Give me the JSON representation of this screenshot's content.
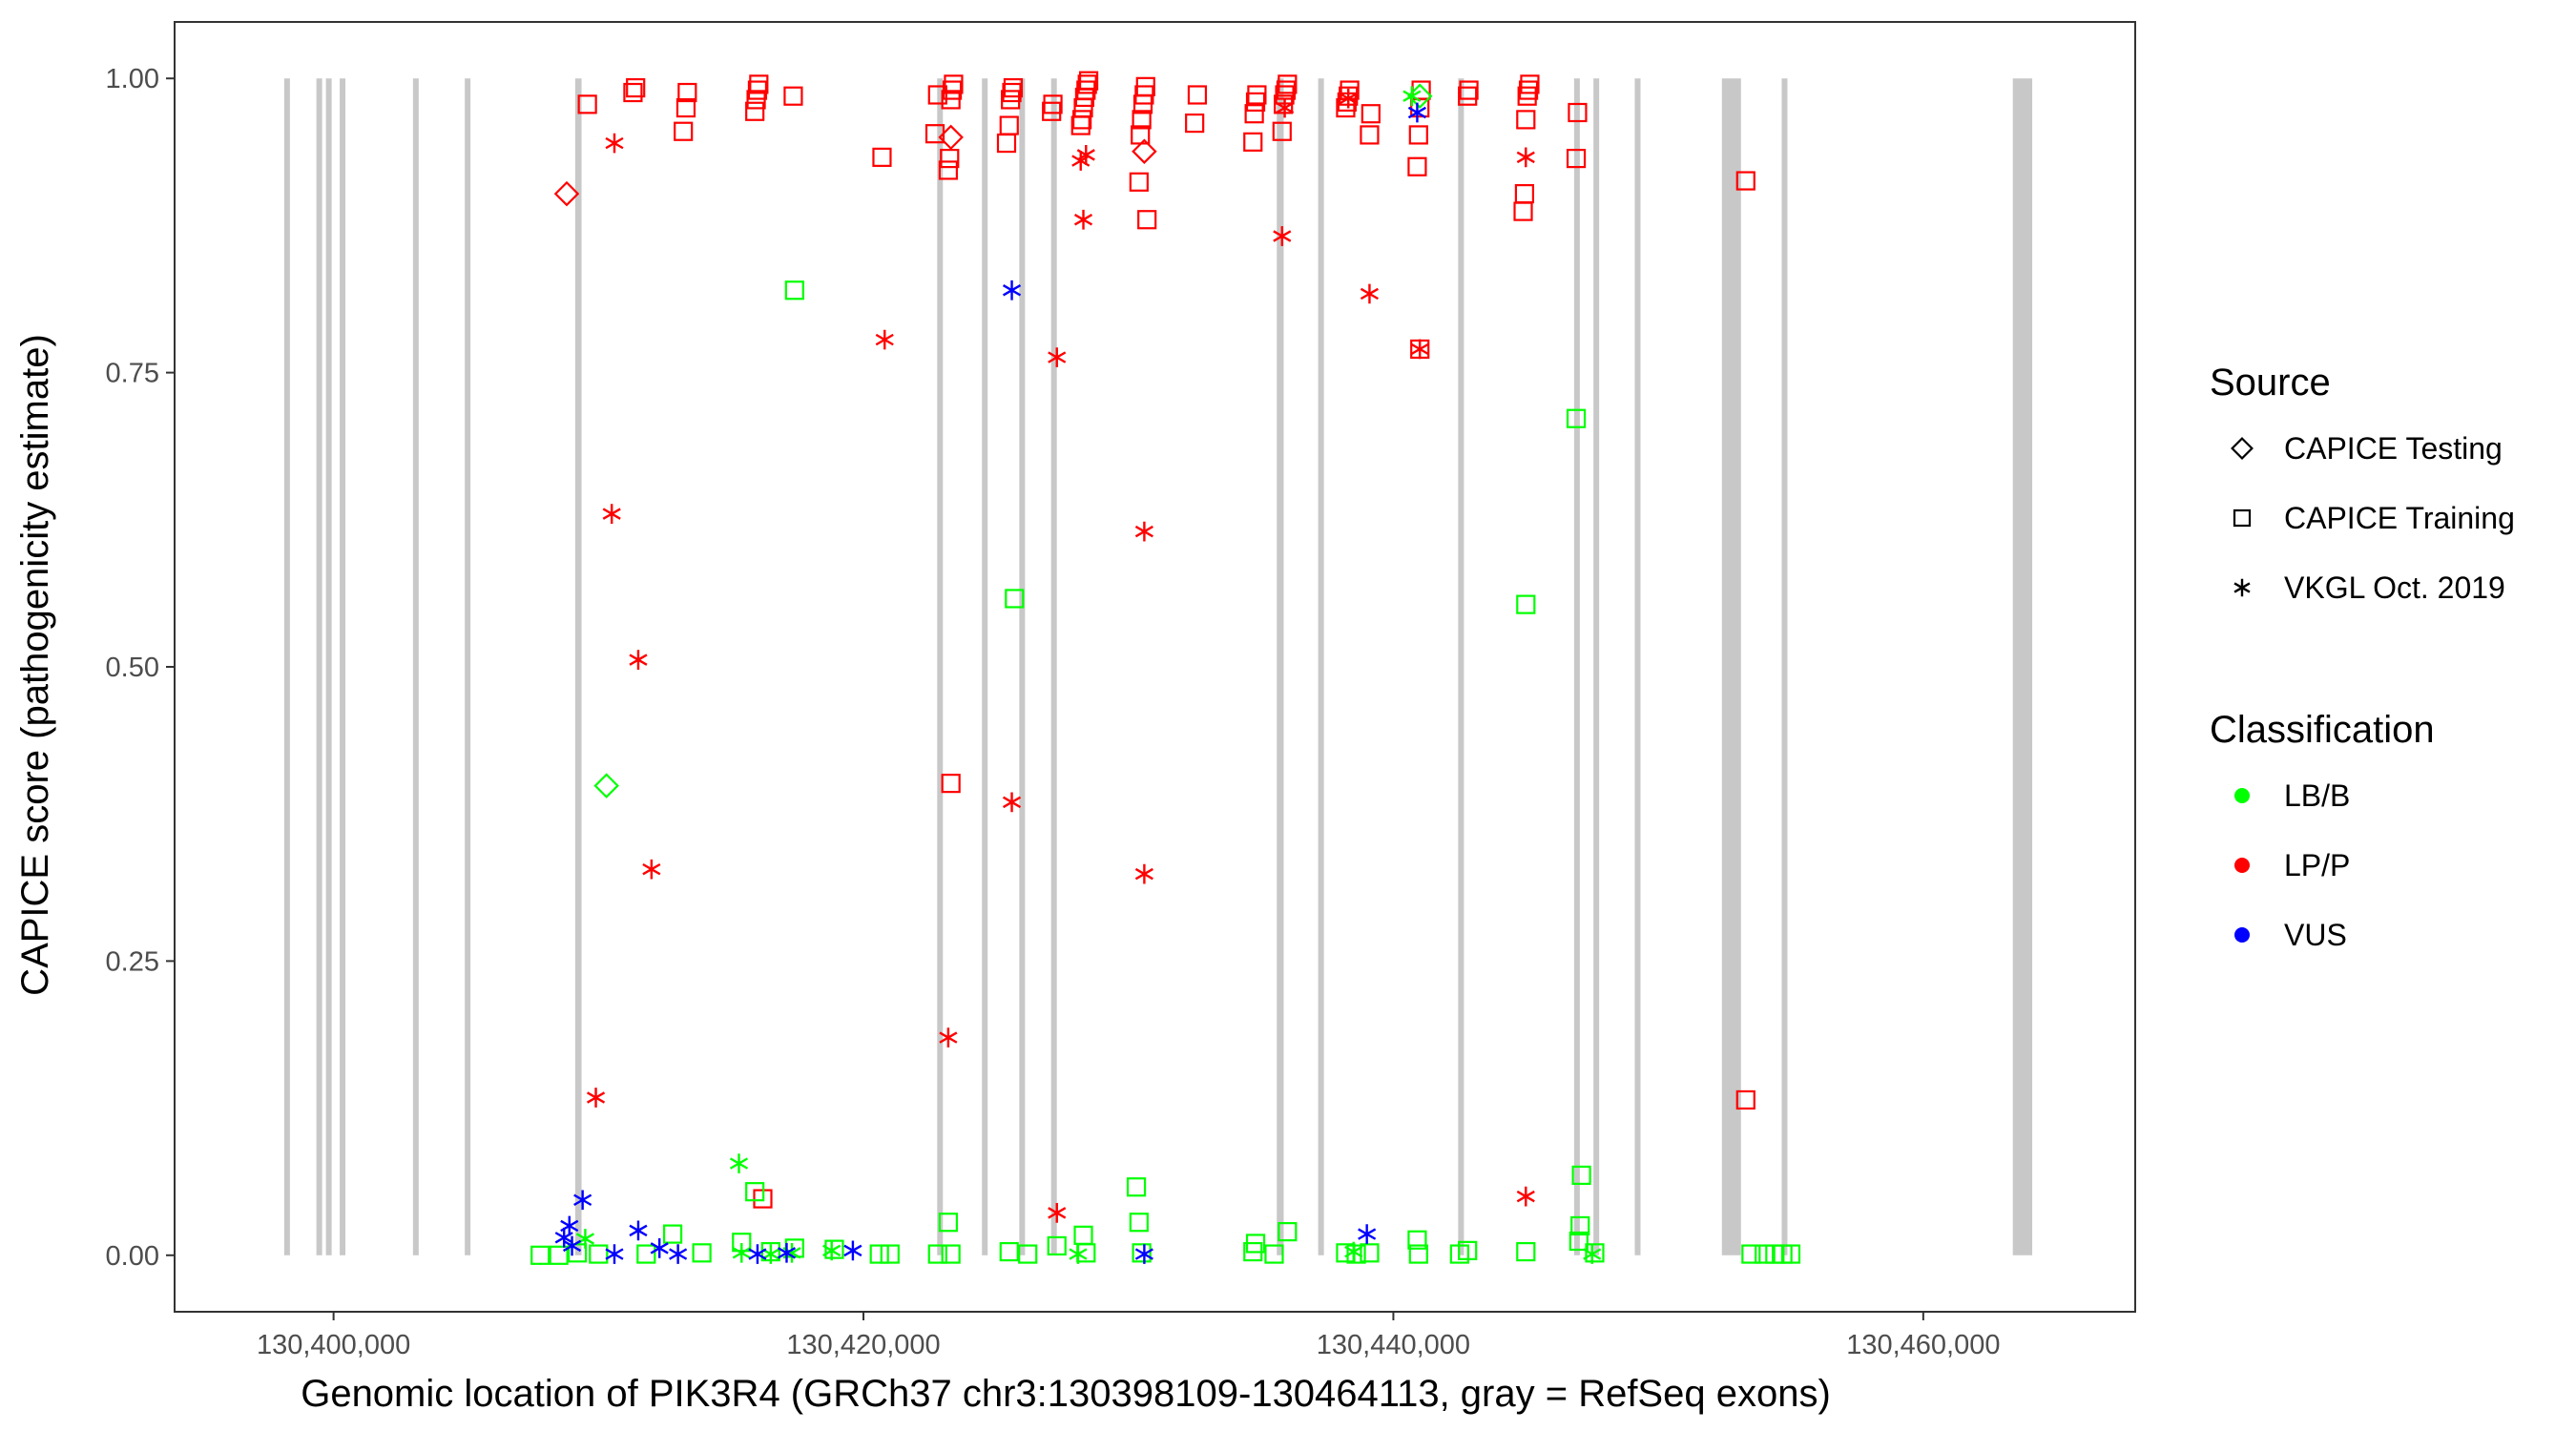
{
  "chart_data": {
    "type": "scatter",
    "title": "",
    "xlabel": "Genomic location of PIK3R4 (GRCh37 chr3:130398109-130464113, gray = RefSeq exons)",
    "ylabel": "CAPICE score (pathogenicity estimate)",
    "xlim": [
      130394000,
      130468000
    ],
    "ylim": [
      -0.048,
      1.048
    ],
    "x_ticks": [
      130400000,
      130420000,
      130440000,
      130460000
    ],
    "x_tick_labels": [
      "130,400,000",
      "130,420,000",
      "130,440,000",
      "130,460,000"
    ],
    "y_ticks": [
      0,
      0.25,
      0.5,
      0.75,
      1.0
    ],
    "y_tick_labels": [
      "0.00",
      "0.25",
      "0.50",
      "0.75",
      "1.00"
    ],
    "grid": false,
    "exon_color": "#c8c8c8",
    "exons": [
      [
        130398180,
        130398310
      ],
      [
        130399400,
        130399520
      ],
      [
        130399760,
        130399880
      ],
      [
        130400280,
        130400400
      ],
      [
        130403040,
        130403170
      ],
      [
        130405000,
        130405120
      ],
      [
        130409120,
        130409360
      ],
      [
        130422800,
        130422980
      ],
      [
        130424500,
        130424660
      ],
      [
        130425900,
        130426080
      ],
      [
        130427100,
        130427280
      ],
      [
        130435600,
        130435860
      ],
      [
        130437200,
        130437340
      ],
      [
        130442490,
        130442620
      ],
      [
        130446850,
        130447010
      ],
      [
        130447600,
        130447720
      ],
      [
        130449160,
        130449280
      ],
      [
        130452400,
        130453120
      ],
      [
        130454700,
        130454830
      ],
      [
        130463380,
        130464113
      ]
    ],
    "legend": {
      "source_title": "Source",
      "source_items": [
        {
          "label": "CAPICE Testing",
          "shape": "diamond"
        },
        {
          "label": "CAPICE Training",
          "shape": "square"
        },
        {
          "label": "VKGL Oct. 2019",
          "shape": "asterisk"
        }
      ],
      "class_title": "Classification",
      "class_items": [
        {
          "label": "LB/B",
          "color": "#00ff00"
        },
        {
          "label": "LP/P",
          "color": "#ff0000"
        },
        {
          "label": "VUS",
          "color": "#0000ff"
        }
      ]
    },
    "series": [
      {
        "name": "CAPICE Training / LP/P",
        "shape": "square",
        "color": "#ff0000",
        "points": [
          [
            130409580,
            0.978
          ],
          [
            130411300,
            0.988
          ],
          [
            130411400,
            0.992
          ],
          [
            130413200,
            0.955
          ],
          [
            130413300,
            0.975
          ],
          [
            130413350,
            0.988
          ],
          [
            130415900,
            0.972
          ],
          [
            130415950,
            0.982
          ],
          [
            130416000,
            0.99
          ],
          [
            130416050,
            0.995
          ],
          [
            130417350,
            0.985
          ],
          [
            130420700,
            0.933
          ],
          [
            130422700,
            0.953
          ],
          [
            130422800,
            0.986
          ],
          [
            130423200,
            0.922
          ],
          [
            130423250,
            0.932
          ],
          [
            130423300,
            0.982
          ],
          [
            130423350,
            0.99
          ],
          [
            130423400,
            0.995
          ],
          [
            130425400,
            0.945
          ],
          [
            130425500,
            0.96
          ],
          [
            130425550,
            0.982
          ],
          [
            130425600,
            0.988
          ],
          [
            130425650,
            0.992
          ],
          [
            130427100,
            0.972
          ],
          [
            130427150,
            0.978
          ],
          [
            130428200,
            0.96
          ],
          [
            130428250,
            0.965
          ],
          [
            130428300,
            0.975
          ],
          [
            130428350,
            0.984
          ],
          [
            130428400,
            0.99
          ],
          [
            130428450,
            0.995
          ],
          [
            130428500,
            0.998
          ],
          [
            130430400,
            0.912
          ],
          [
            130430450,
            0.952
          ],
          [
            130430500,
            0.965
          ],
          [
            130430550,
            0.978
          ],
          [
            130430600,
            0.986
          ],
          [
            130430650,
            0.993
          ],
          [
            130430700,
            0.88
          ],
          [
            130432500,
            0.962
          ],
          [
            130432600,
            0.986
          ],
          [
            130434700,
            0.946
          ],
          [
            130434750,
            0.97
          ],
          [
            130434800,
            0.98
          ],
          [
            130434850,
            0.986
          ],
          [
            130435800,
            0.955
          ],
          [
            130435850,
            0.978
          ],
          [
            130435900,
            0.986
          ],
          [
            130435950,
            0.99
          ],
          [
            130436000,
            0.995
          ],
          [
            130438200,
            0.975
          ],
          [
            130438250,
            0.98
          ],
          [
            130438300,
            0.985
          ],
          [
            130438350,
            0.99
          ],
          [
            130439100,
            0.952
          ],
          [
            130439150,
            0.97
          ],
          [
            130440900,
            0.925
          ],
          [
            130440950,
            0.952
          ],
          [
            130441000,
            0.975
          ],
          [
            130441050,
            0.99
          ],
          [
            130442800,
            0.985
          ],
          [
            130442850,
            0.99
          ],
          [
            130444900,
            0.887
          ],
          [
            130444950,
            0.902
          ],
          [
            130445000,
            0.965
          ],
          [
            130445050,
            0.985
          ],
          [
            130445100,
            0.99
          ],
          [
            130445150,
            0.995
          ],
          [
            130446900,
            0.932
          ],
          [
            130446950,
            0.971
          ],
          [
            130453300,
            0.913
          ],
          [
            130423300,
            0.401
          ],
          [
            130416200,
            0.048
          ],
          [
            130453300,
            0.132
          ],
          [
            130441000,
            0.77
          ]
        ]
      },
      {
        "name": "CAPICE Training / LB/B",
        "shape": "square",
        "color": "#00ff00",
        "points": [
          [
            130417400,
            0.82
          ],
          [
            130425700,
            0.558
          ],
          [
            130446900,
            0.711
          ],
          [
            130445000,
            0.553
          ],
          [
            130407800,
            0.0
          ],
          [
            130408500,
            0.0
          ],
          [
            130409200,
            0.002
          ],
          [
            130410000,
            0.001
          ],
          [
            130411800,
            0.001
          ],
          [
            130412800,
            0.018
          ],
          [
            130413900,
            0.002
          ],
          [
            130415400,
            0.011
          ],
          [
            130415900,
            0.054
          ],
          [
            130416500,
            0.003
          ],
          [
            130417400,
            0.006
          ],
          [
            130418900,
            0.005
          ],
          [
            130420600,
            0.001
          ],
          [
            130421000,
            0.001
          ],
          [
            130422800,
            0.001
          ],
          [
            130423200,
            0.028
          ],
          [
            130423300,
            0.001
          ],
          [
            130425500,
            0.003
          ],
          [
            130426200,
            0.001
          ],
          [
            130427300,
            0.008
          ],
          [
            130428300,
            0.017
          ],
          [
            130428400,
            0.002
          ],
          [
            130430300,
            0.058
          ],
          [
            130430400,
            0.028
          ],
          [
            130430500,
            0.002
          ],
          [
            130434700,
            0.003
          ],
          [
            130434800,
            0.01
          ],
          [
            130435500,
            0.001
          ],
          [
            130436000,
            0.02
          ],
          [
            130438200,
            0.002
          ],
          [
            130438600,
            0.001
          ],
          [
            130439100,
            0.002
          ],
          [
            130440900,
            0.013
          ],
          [
            130440950,
            0.001
          ],
          [
            130442500,
            0.001
          ],
          [
            130442800,
            0.004
          ],
          [
            130445000,
            0.003
          ],
          [
            130447000,
            0.012
          ],
          [
            130447050,
            0.025
          ],
          [
            130447100,
            0.068
          ],
          [
            130447600,
            0.002
          ],
          [
            130453500,
            0.001
          ],
          [
            130454000,
            0.001
          ],
          [
            130454400,
            0.001
          ],
          [
            130454700,
            0.001
          ],
          [
            130455000,
            0.001
          ]
        ]
      },
      {
        "name": "CAPICE Testing / LP/P",
        "shape": "diamond",
        "color": "#ff0000",
        "points": [
          [
            130408800,
            0.902
          ],
          [
            130423300,
            0.95
          ],
          [
            130430600,
            0.938
          ]
        ]
      },
      {
        "name": "CAPICE Testing / LB/B",
        "shape": "diamond",
        "color": "#00ff00",
        "points": [
          [
            130410300,
            0.399
          ],
          [
            130441000,
            0.985
          ]
        ]
      },
      {
        "name": "VKGL Oct. 2019 / LP/P",
        "shape": "asterisk",
        "color": "#ff0000",
        "points": [
          [
            130410600,
            0.945
          ],
          [
            130410500,
            0.63
          ],
          [
            130411500,
            0.506
          ],
          [
            130412000,
            0.328
          ],
          [
            130409900,
            0.134
          ],
          [
            130420800,
            0.778
          ],
          [
            130423200,
            0.185
          ],
          [
            130425600,
            0.385
          ],
          [
            130427300,
            0.763
          ],
          [
            130427300,
            0.036
          ],
          [
            130428200,
            0.93
          ],
          [
            130428300,
            0.88
          ],
          [
            130428400,
            0.935
          ],
          [
            130430600,
            0.615
          ],
          [
            130430600,
            0.324
          ],
          [
            130435800,
            0.866
          ],
          [
            130435900,
            0.975
          ],
          [
            130438300,
            0.983
          ],
          [
            130439100,
            0.817
          ],
          [
            130441000,
            0.77
          ],
          [
            130445000,
            0.933
          ],
          [
            130445000,
            0.05
          ]
        ]
      },
      {
        "name": "VKGL Oct. 2019 / LB/B",
        "shape": "asterisk",
        "color": "#00ff00",
        "points": [
          [
            130409500,
            0.014
          ],
          [
            130415300,
            0.078
          ],
          [
            130415400,
            0.002
          ],
          [
            130416500,
            0.001
          ],
          [
            130417300,
            0.002
          ],
          [
            130418800,
            0.004
          ],
          [
            130428100,
            0.001
          ],
          [
            130438500,
            0.003
          ],
          [
            130440700,
            0.985
          ],
          [
            130447500,
            0.001
          ]
        ]
      },
      {
        "name": "VKGL Oct. 2019 / VUS",
        "shape": "asterisk",
        "color": "#0000ff",
        "points": [
          [
            130408700,
            0.015
          ],
          [
            130408900,
            0.025
          ],
          [
            130409000,
            0.008
          ],
          [
            130409400,
            0.047
          ],
          [
            130410600,
            0.001
          ],
          [
            130411500,
            0.021
          ],
          [
            130412300,
            0.006
          ],
          [
            130413000,
            0.001
          ],
          [
            130416000,
            0.001
          ],
          [
            130417100,
            0.002
          ],
          [
            130419600,
            0.004
          ],
          [
            130425600,
            0.82
          ],
          [
            130430600,
            0.001
          ],
          [
            130439000,
            0.018
          ],
          [
            130440900,
            0.971
          ]
        ]
      }
    ]
  }
}
